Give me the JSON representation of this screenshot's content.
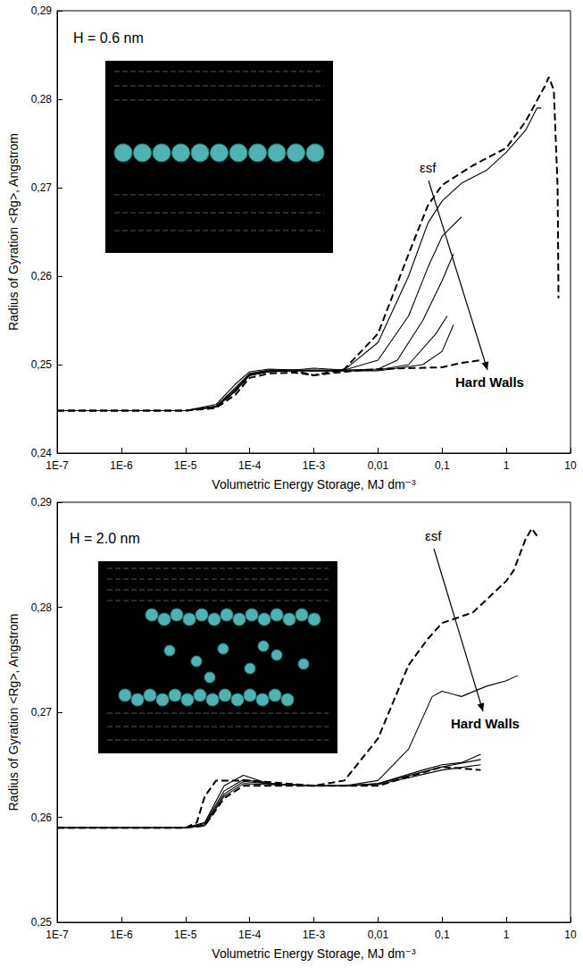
{
  "chart_data": [
    {
      "type": "line",
      "y_label": "Radius of Gyration <Rg>, Angstrom",
      "x_label": "Volumetric Energy Storage, MJ dm⁻³",
      "annotations": [
        "H = 0.6 nm",
        "εsf",
        "Hard Walls"
      ],
      "log": "x",
      "grid": false,
      "xlim": [
        1e-07,
        10
      ],
      "xticks": [
        {
          "value": 1e-07,
          "label": "1E-7"
        },
        {
          "value": 1e-06,
          "label": "1E-6"
        },
        {
          "value": 1e-05,
          "label": "1E-5"
        },
        {
          "value": 0.0001,
          "label": "1E-4"
        },
        {
          "value": 0.001,
          "label": "1E-3"
        },
        {
          "value": 0.01,
          "label": "0,01"
        },
        {
          "value": 0.1,
          "label": "0,1"
        },
        1,
        10
      ],
      "ylim": [
        0.24,
        0.29
      ],
      "yticks": [
        {
          "value": 0.24,
          "label": "0,24"
        },
        {
          "value": 0.25,
          "label": "0,25"
        },
        {
          "value": 0.26,
          "label": "0,26"
        },
        {
          "value": 0.27,
          "label": "0,27"
        },
        {
          "value": 0.28,
          "label": "0,28"
        },
        {
          "value": 0.29,
          "label": "0,29"
        }
      ],
      "series": [
        {
          "color": "#000000",
          "line_style": "dashed",
          "x": [
            1e-07,
            1e-05,
            3e-05,
            6e-05,
            0.0001,
            0.0002,
            0.0005,
            0.001,
            0.003,
            0.01,
            0.03,
            0.06,
            0.1,
            0.3,
            1,
            2,
            4,
            4.6,
            5.5,
            6.3,
            6.5
          ],
          "values": [
            0.2448,
            0.2448,
            0.2452,
            0.247,
            0.2488,
            0.2493,
            0.2493,
            0.2488,
            0.2495,
            0.2535,
            0.2625,
            0.268,
            0.2703,
            0.2725,
            0.2745,
            0.2775,
            0.2815,
            0.2825,
            0.281,
            0.27,
            0.2575
          ]
        },
        {
          "color": "#000000",
          "line_style": "solid",
          "x": [
            1e-07,
            1e-05,
            3e-05,
            6e-05,
            0.0001,
            0.0002,
            0.0005,
            0.001,
            0.003,
            0.01,
            0.03,
            0.06,
            0.1,
            0.2,
            0.5,
            1,
            2,
            3,
            3.5
          ],
          "values": [
            0.2448,
            0.2448,
            0.2455,
            0.2478,
            0.2492,
            0.2495,
            0.2494,
            0.2496,
            0.2494,
            0.2525,
            0.26,
            0.266,
            0.2685,
            0.2705,
            0.272,
            0.274,
            0.2765,
            0.279,
            0.279
          ]
        },
        {
          "color": "#000000",
          "line_style": "solid",
          "x": [
            1e-07,
            1e-05,
            3e-05,
            6e-05,
            0.0001,
            0.0002,
            0.0005,
            0.001,
            0.003,
            0.01,
            0.03,
            0.06,
            0.1,
            0.2
          ],
          "values": [
            0.2448,
            0.2448,
            0.2453,
            0.2474,
            0.249,
            0.2494,
            0.2494,
            0.2494,
            0.2494,
            0.2505,
            0.2555,
            0.261,
            0.2645,
            0.2667
          ]
        },
        {
          "color": "#000000",
          "line_style": "solid",
          "x": [
            1e-07,
            1e-05,
            3e-05,
            6e-05,
            0.0001,
            0.0002,
            0.0005,
            0.001,
            0.003,
            0.01,
            0.02,
            0.05,
            0.1,
            0.15
          ],
          "values": [
            0.2448,
            0.2448,
            0.2453,
            0.2472,
            0.2489,
            0.2493,
            0.2494,
            0.2493,
            0.2494,
            0.2495,
            0.2505,
            0.255,
            0.2595,
            0.2625
          ]
        },
        {
          "color": "#000000",
          "line_style": "solid",
          "x": [
            1e-07,
            1e-05,
            3e-05,
            6e-05,
            0.0001,
            0.0002,
            0.0005,
            0.001,
            0.003,
            0.01,
            0.03,
            0.08,
            0.12
          ],
          "values": [
            0.2448,
            0.2448,
            0.2452,
            0.247,
            0.2488,
            0.2492,
            0.2493,
            0.2493,
            0.2493,
            0.2494,
            0.25,
            0.2535,
            0.2555
          ]
        },
        {
          "color": "#000000",
          "line_style": "solid",
          "x": [
            1e-07,
            1e-05,
            3e-05,
            6e-05,
            0.0001,
            0.0002,
            0.0005,
            0.001,
            0.003,
            0.01,
            0.05,
            0.1,
            0.15
          ],
          "values": [
            0.2448,
            0.2448,
            0.2452,
            0.247,
            0.2488,
            0.2492,
            0.2493,
            0.2493,
            0.2493,
            0.2493,
            0.25,
            0.2515,
            0.2545
          ]
        },
        {
          "color": "#000000",
          "line_style": "dashed",
          "x": [
            1e-07,
            1e-05,
            3e-05,
            6e-05,
            0.0001,
            0.0002,
            0.0005,
            0.001,
            0.003,
            0.01,
            0.1,
            0.2,
            0.4
          ],
          "values": [
            0.2448,
            0.2448,
            0.2451,
            0.2466,
            0.2485,
            0.249,
            0.2491,
            0.2488,
            0.2492,
            0.2495,
            0.2497,
            0.2502,
            0.2505
          ]
        }
      ]
    },
    {
      "type": "line",
      "y_label": "Radius of Gyration <Rg>, Angstrom",
      "x_label": "Volumetric Energy Storage, MJ dm⁻³",
      "annotations": [
        "H = 2.0 nm",
        "εsf",
        "Hard Walls"
      ],
      "log": "x",
      "grid": false,
      "xlim": [
        1e-07,
        10
      ],
      "xticks": [
        {
          "value": 1e-07,
          "label": "1E-7"
        },
        {
          "value": 1e-06,
          "label": "1E-6"
        },
        {
          "value": 1e-05,
          "label": "1E-5"
        },
        {
          "value": 0.0001,
          "label": "1E-4"
        },
        {
          "value": 0.001,
          "label": "1E-3"
        },
        {
          "value": 0.01,
          "label": "0,01"
        },
        {
          "value": 0.1,
          "label": "0,1"
        },
        1,
        10
      ],
      "ylim": [
        0.25,
        0.29
      ],
      "yticks": [
        {
          "value": 0.25,
          "label": "0,25"
        },
        {
          "value": 0.26,
          "label": "0,26"
        },
        {
          "value": 0.27,
          "label": "0,27"
        },
        {
          "value": 0.28,
          "label": "0,28"
        },
        {
          "value": 0.29,
          "label": "0,29"
        }
      ],
      "series": [
        {
          "color": "#000000",
          "line_style": "dashed",
          "x": [
            1e-07,
            1e-05,
            1.5e-05,
            2e-05,
            3e-05,
            0.0001,
            0.001,
            0.003,
            0.01,
            0.03,
            0.06,
            0.1,
            0.3,
            1,
            1.3,
            2,
            2.5,
            3
          ],
          "values": [
            0.259,
            0.259,
            0.2595,
            0.262,
            0.2635,
            0.2635,
            0.263,
            0.2635,
            0.2675,
            0.2745,
            0.277,
            0.2785,
            0.2795,
            0.2825,
            0.2835,
            0.2865,
            0.2875,
            0.2868
          ]
        },
        {
          "color": "#000000",
          "line_style": "solid",
          "x": [
            1e-07,
            1e-05,
            2e-05,
            4e-05,
            8e-05,
            0.0002,
            0.001,
            0.003,
            0.01,
            0.03,
            0.07,
            0.1,
            0.2,
            0.5,
            1,
            1.5
          ],
          "values": [
            0.259,
            0.259,
            0.2595,
            0.263,
            0.264,
            0.2632,
            0.263,
            0.263,
            0.2635,
            0.2665,
            0.2715,
            0.272,
            0.2715,
            0.2725,
            0.273,
            0.2735
          ]
        },
        {
          "color": "#000000",
          "line_style": "solid",
          "x": [
            1e-07,
            1e-05,
            2e-05,
            4e-05,
            8e-05,
            0.0002,
            0.001,
            0.003,
            0.01,
            0.05,
            0.1,
            0.2,
            0.4
          ],
          "values": [
            0.259,
            0.259,
            0.2594,
            0.2625,
            0.2636,
            0.2632,
            0.263,
            0.263,
            0.2632,
            0.2645,
            0.265,
            0.2652,
            0.266
          ]
        },
        {
          "color": "#000000",
          "line_style": "solid",
          "x": [
            1e-07,
            1e-05,
            2e-05,
            4e-05,
            8e-05,
            0.0002,
            0.001,
            0.003,
            0.01,
            0.1,
            0.4
          ],
          "values": [
            0.259,
            0.259,
            0.2593,
            0.2622,
            0.2634,
            0.2632,
            0.263,
            0.263,
            0.2632,
            0.2648,
            0.2655
          ]
        },
        {
          "color": "#000000",
          "line_style": "solid",
          "x": [
            1e-07,
            1e-05,
            2e-05,
            4e-05,
            8e-05,
            0.0002,
            0.001,
            0.003,
            0.01,
            0.1,
            0.4
          ],
          "values": [
            0.259,
            0.259,
            0.2592,
            0.262,
            0.2632,
            0.2631,
            0.263,
            0.263,
            0.2631,
            0.2645,
            0.265
          ]
        },
        {
          "color": "#000000",
          "line_style": "dashed",
          "x": [
            1e-07,
            1e-05,
            2e-05,
            4e-05,
            8e-05,
            0.0002,
            0.001,
            0.003,
            0.01,
            0.1,
            0.4
          ],
          "values": [
            0.259,
            0.259,
            0.2592,
            0.2618,
            0.263,
            0.263,
            0.263,
            0.263,
            0.263,
            0.2648,
            0.2645
          ]
        }
      ]
    }
  ]
}
